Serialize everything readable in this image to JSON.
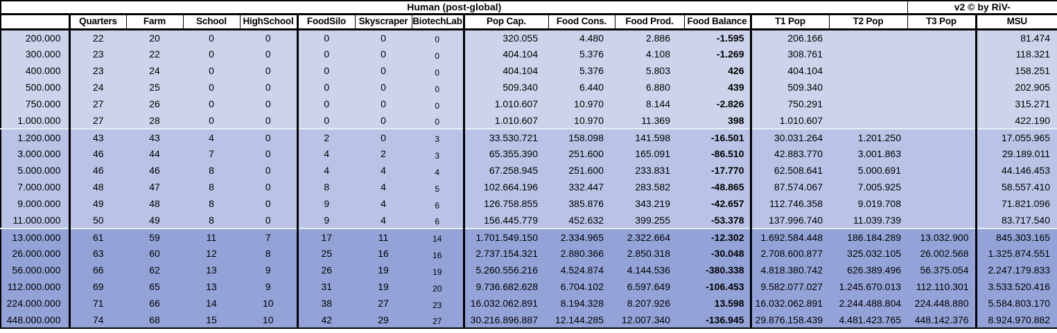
{
  "table": {
    "title": "Human (post-global)",
    "credit": "v2 © by RiV-",
    "columns": [
      "",
      "Quarters",
      "Farm",
      "School",
      "HighSchool",
      "FoodSilo",
      "Skyscraper",
      "BiotechLab",
      "Pop Cap.",
      "Food Cons.",
      "Food Prod.",
      "Food Balance",
      "T1 Pop",
      "T2 Pop",
      "T3 Pop",
      "MSU"
    ],
    "colors": {
      "band1": "#ccd3eb",
      "band2": "#b8c3e6",
      "band3": "#93a3d8",
      "border": "#000000",
      "band_separator": "#e9edf8"
    },
    "groups": [
      {
        "name": "tier-1",
        "rows": [
          [
            "200.000",
            "22",
            "20",
            "0",
            "0",
            "0",
            "0",
            "0",
            "320.055",
            "4.480",
            "2.886",
            "-1.595",
            "206.166",
            "",
            "",
            "81.474"
          ],
          [
            "300.000",
            "23",
            "22",
            "0",
            "0",
            "0",
            "0",
            "0",
            "404.104",
            "5.376",
            "4.108",
            "-1.269",
            "308.761",
            "",
            "",
            "118.321"
          ],
          [
            "400.000",
            "23",
            "24",
            "0",
            "0",
            "0",
            "0",
            "0",
            "404.104",
            "5.376",
            "5.803",
            "426",
            "404.104",
            "",
            "",
            "158.251"
          ],
          [
            "500.000",
            "24",
            "25",
            "0",
            "0",
            "0",
            "0",
            "0",
            "509.340",
            "6.440",
            "6.880",
            "439",
            "509.340",
            "",
            "",
            "202.905"
          ],
          [
            "750.000",
            "27",
            "26",
            "0",
            "0",
            "0",
            "0",
            "0",
            "1.010.607",
            "10.970",
            "8.144",
            "-2.826",
            "750.291",
            "",
            "",
            "315.271"
          ],
          [
            "1.000.000",
            "27",
            "28",
            "0",
            "0",
            "0",
            "0",
            "0",
            "1.010.607",
            "10.970",
            "11.369",
            "398",
            "1.010.607",
            "",
            "",
            "422.190"
          ]
        ]
      },
      {
        "name": "tier-2",
        "rows": [
          [
            "1.200.000",
            "43",
            "43",
            "4",
            "0",
            "2",
            "0",
            "3",
            "33.530.721",
            "158.098",
            "141.598",
            "-16.501",
            "30.031.264",
            "1.201.250",
            "",
            "17.055.965"
          ],
          [
            "3.000.000",
            "46",
            "44",
            "7",
            "0",
            "4",
            "2",
            "3",
            "65.355.390",
            "251.600",
            "165.091",
            "-86.510",
            "42.883.770",
            "3.001.863",
            "",
            "29.189.011"
          ],
          [
            "5.000.000",
            "46",
            "46",
            "8",
            "0",
            "4",
            "4",
            "4",
            "67.258.945",
            "251.600",
            "233.831",
            "-17.770",
            "62.508.641",
            "5.000.691",
            "",
            "44.146.453"
          ],
          [
            "7.000.000",
            "48",
            "47",
            "8",
            "0",
            "8",
            "4",
            "5",
            "102.664.196",
            "332.447",
            "283.582",
            "-48.865",
            "87.574.067",
            "7.005.925",
            "",
            "58.557.410"
          ],
          [
            "9.000.000",
            "49",
            "48",
            "8",
            "0",
            "9",
            "4",
            "6",
            "126.758.855",
            "385.876",
            "343.219",
            "-42.657",
            "112.746.358",
            "9.019.708",
            "",
            "71.821.096"
          ],
          [
            "11.000.000",
            "50",
            "49",
            "8",
            "0",
            "9",
            "4",
            "6",
            "156.445.779",
            "452.632",
            "399.255",
            "-53.378",
            "137.996.740",
            "11.039.739",
            "",
            "83.717.540"
          ]
        ]
      },
      {
        "name": "tier-3",
        "rows": [
          [
            "13.000.000",
            "61",
            "59",
            "11",
            "7",
            "17",
            "11",
            "14",
            "1.701.549.150",
            "2.334.965",
            "2.322.664",
            "-12.302",
            "1.692.584.448",
            "186.184.289",
            "13.032.900",
            "845.303.165"
          ],
          [
            "26.000.000",
            "63",
            "60",
            "12",
            "8",
            "25",
            "16",
            "16",
            "2.737.154.321",
            "2.880.366",
            "2.850.318",
            "-30.048",
            "2.708.600.877",
            "325.032.105",
            "26.002.568",
            "1.325.874.551"
          ],
          [
            "56.000.000",
            "66",
            "62",
            "13",
            "9",
            "26",
            "19",
            "19",
            "5.260.556.216",
            "4.524.874",
            "4.144.536",
            "-380.338",
            "4.818.380.742",
            "626.389.496",
            "56.375.054",
            "2.247.179.833"
          ],
          [
            "112.000.000",
            "69",
            "65",
            "13",
            "9",
            "31",
            "19",
            "20",
            "9.736.682.628",
            "6.704.102",
            "6.597.649",
            "-106.453",
            "9.582.077.027",
            "1.245.670.013",
            "112.110.301",
            "3.533.520.416"
          ],
          [
            "224.000.000",
            "71",
            "66",
            "14",
            "10",
            "38",
            "27",
            "23",
            "16.032.062.891",
            "8.194.328",
            "8.207.926",
            "13.598",
            "16.032.062.891",
            "2.244.488.804",
            "224.448.880",
            "5.584.803.170"
          ],
          [
            "448.000.000",
            "74",
            "68",
            "15",
            "10",
            "42",
            "29",
            "27",
            "30.216.896.887",
            "12.144.285",
            "12.007.340",
            "-136.945",
            "29.876.158.439",
            "4.481.423.765",
            "448.142.376",
            "8.924.970.882"
          ]
        ]
      }
    ]
  }
}
